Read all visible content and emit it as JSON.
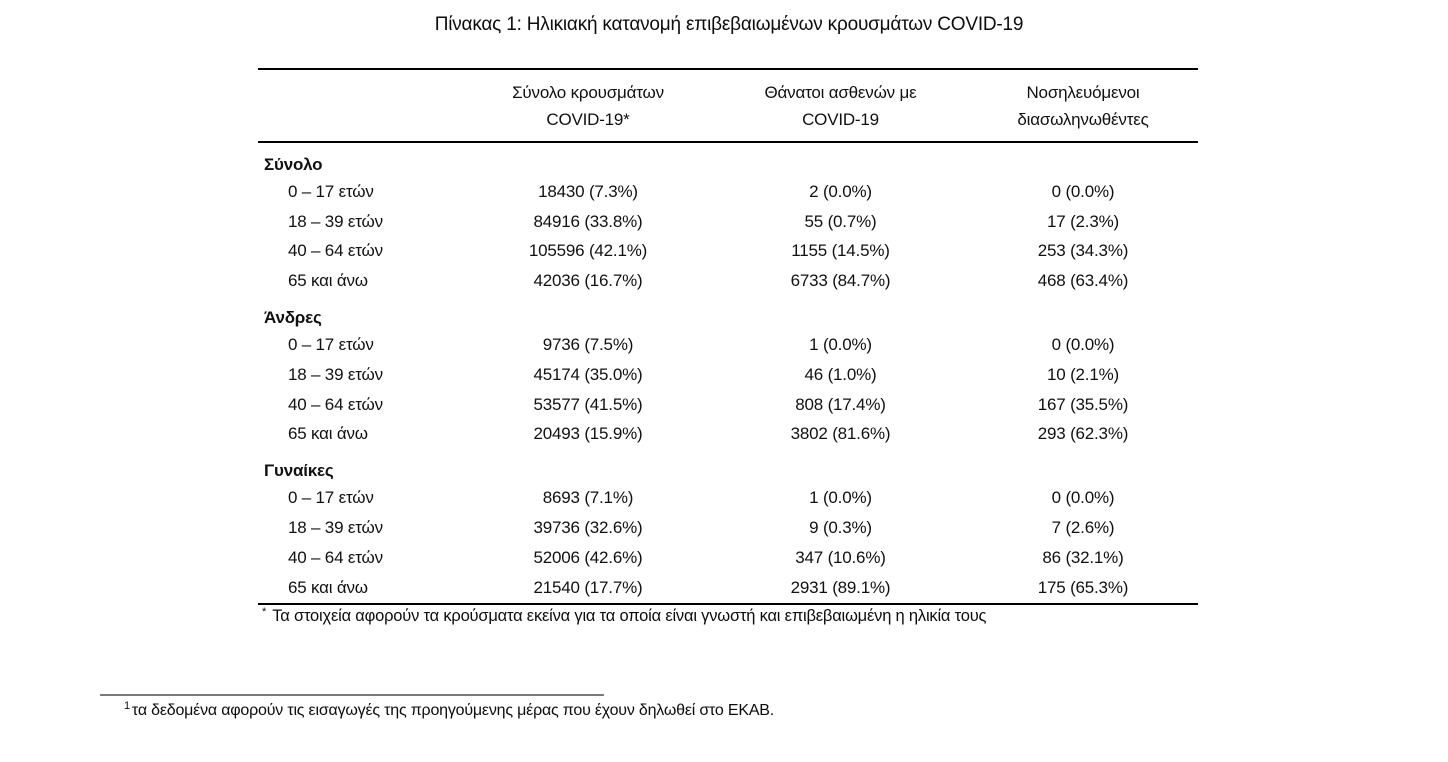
{
  "title": "Πίνακας 1: Ηλικιακή κατανομή επιβεβαιωμένων κρουσμάτων COVID-19",
  "table": {
    "col_headers": [
      {
        "line1": "Σύνολο κρουσμάτων",
        "line2": "COVID-19*"
      },
      {
        "line1": "Θάνατοι ασθενών με",
        "line2": "COVID-19"
      },
      {
        "line1": "Νοσηλευόμενοι",
        "line2": "διασωληνωθέντες"
      }
    ],
    "sections": [
      {
        "label": "Σύνολο",
        "rows": [
          {
            "age": "0 – 17 ετών",
            "cases": "18430 (7.3%)",
            "deaths": "2 (0.0%)",
            "intubated": "0 (0.0%)"
          },
          {
            "age": "18 – 39 ετών",
            "cases": "84916 (33.8%)",
            "deaths": "55 (0.7%)",
            "intubated": "17 (2.3%)"
          },
          {
            "age": "40 – 64 ετών",
            "cases": "105596 (42.1%)",
            "deaths": "1155 (14.5%)",
            "intubated": "253 (34.3%)"
          },
          {
            "age": "65 και άνω",
            "cases": "42036 (16.7%)",
            "deaths": "6733 (84.7%)",
            "intubated": "468 (63.4%)"
          }
        ]
      },
      {
        "label": "Άνδρες",
        "rows": [
          {
            "age": "0 – 17 ετών",
            "cases": "9736 (7.5%)",
            "deaths": "1 (0.0%)",
            "intubated": "0 (0.0%)"
          },
          {
            "age": "18 – 39 ετών",
            "cases": "45174 (35.0%)",
            "deaths": "46 (1.0%)",
            "intubated": "10 (2.1%)"
          },
          {
            "age": "40 – 64 ετών",
            "cases": "53577 (41.5%)",
            "deaths": "808 (17.4%)",
            "intubated": "167 (35.5%)"
          },
          {
            "age": "65 και άνω",
            "cases": "20493 (15.9%)",
            "deaths": "3802 (81.6%)",
            "intubated": "293 (62.3%)"
          }
        ]
      },
      {
        "label": "Γυναίκες",
        "rows": [
          {
            "age": "0 – 17 ετών",
            "cases": "8693 (7.1%)",
            "deaths": "1 (0.0%)",
            "intubated": "0 (0.0%)"
          },
          {
            "age": "18 – 39 ετών",
            "cases": "39736 (32.6%)",
            "deaths": "9 (0.3%)",
            "intubated": "7 (2.6%)"
          },
          {
            "age": "40 – 64 ετών",
            "cases": "52006 (42.6%)",
            "deaths": "347 (10.6%)",
            "intubated": "86 (32.1%)"
          },
          {
            "age": "65 και άνω",
            "cases": "21540 (17.7%)",
            "deaths": "2931 (89.1%)",
            "intubated": "175 (65.3%)"
          }
        ]
      }
    ],
    "footnote_marker": "*",
    "footnote": "Τα στοιχεία αφορούν τα κρούσματα εκείνα για τα οποία είναι γνωστή και επιβεβαιωμένη η ηλικία τους"
  },
  "page_footnote": {
    "marker": "1",
    "text": "τα δεδομένα αφορούν τις εισαγωγές της προηγούμενης μέρας που έχουν δηλωθεί στο ΕΚΑΒ."
  }
}
